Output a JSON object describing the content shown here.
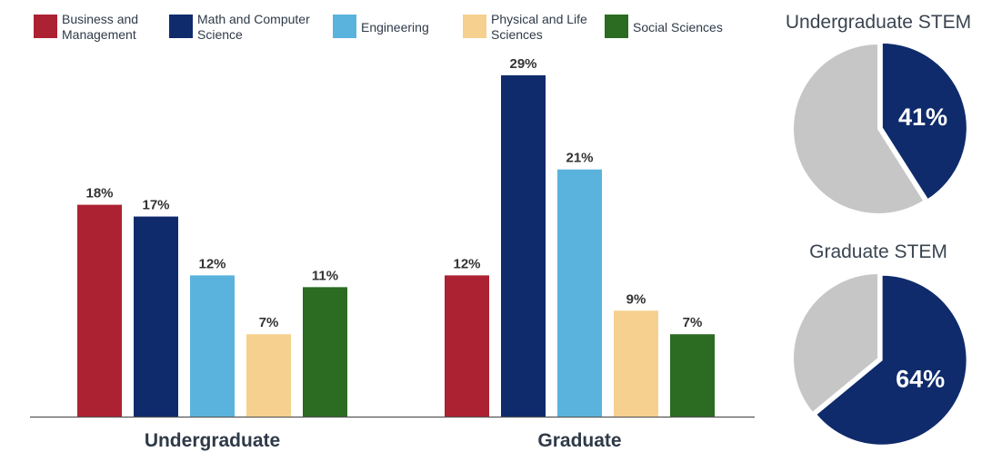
{
  "colors": {
    "business": "#ad2232",
    "math": "#0f2b6c",
    "engineering": "#5ab3dc",
    "physical": "#f6d08e",
    "social": "#2b6b22",
    "pie_rest": "#c6c6c6",
    "axis": "#555555"
  },
  "legend": [
    {
      "lines": [
        "Business and",
        "Management"
      ],
      "color_key": "business",
      "icon": "square-swatch"
    },
    {
      "lines": [
        "Math and Computer",
        "Science"
      ],
      "color_key": "math",
      "icon": "square-swatch"
    },
    {
      "lines": [
        "Engineering"
      ],
      "color_key": "engineering",
      "icon": "square-swatch"
    },
    {
      "lines": [
        "Physical and Life",
        "Sciences"
      ],
      "color_key": "physical",
      "icon": "square-swatch"
    },
    {
      "lines": [
        "Social Sciences"
      ],
      "color_key": "social",
      "icon": "square-swatch"
    }
  ],
  "chart_data": [
    {
      "type": "bar",
      "categories": [
        "Undergraduate",
        "Graduate"
      ],
      "series": [
        {
          "name": "Business and Management",
          "color_key": "business",
          "values": [
            18,
            12
          ],
          "labels": [
            "18%",
            "12%"
          ]
        },
        {
          "name": "Math and Computer Science",
          "color_key": "math",
          "values": [
            17,
            29
          ],
          "labels": [
            "17%",
            "29%"
          ]
        },
        {
          "name": "Engineering",
          "color_key": "engineering",
          "values": [
            12,
            21
          ],
          "labels": [
            "12%",
            "21%"
          ]
        },
        {
          "name": "Physical and Life Sciences",
          "color_key": "physical",
          "values": [
            7,
            9
          ],
          "labels": [
            "7%",
            "9%"
          ]
        },
        {
          "name": "Social Sciences",
          "color_key": "social",
          "values": [
            11,
            7
          ],
          "labels": [
            "11%",
            "7%"
          ]
        }
      ],
      "unit": "%",
      "ylim": [
        0,
        30
      ],
      "grid": false,
      "legend_position": "top"
    },
    {
      "type": "pie",
      "title": "Undergraduate STEM",
      "slices": [
        {
          "label": "41%",
          "value": 41,
          "color_key": "math",
          "highlighted": true
        },
        {
          "label": "",
          "value": 59,
          "color_key": "pie_rest",
          "highlighted": false
        }
      ]
    },
    {
      "type": "pie",
      "title": "Graduate STEM",
      "slices": [
        {
          "label": "64%",
          "value": 64,
          "color_key": "math",
          "highlighted": true
        },
        {
          "label": "",
          "value": 36,
          "color_key": "pie_rest",
          "highlighted": false
        }
      ]
    }
  ]
}
